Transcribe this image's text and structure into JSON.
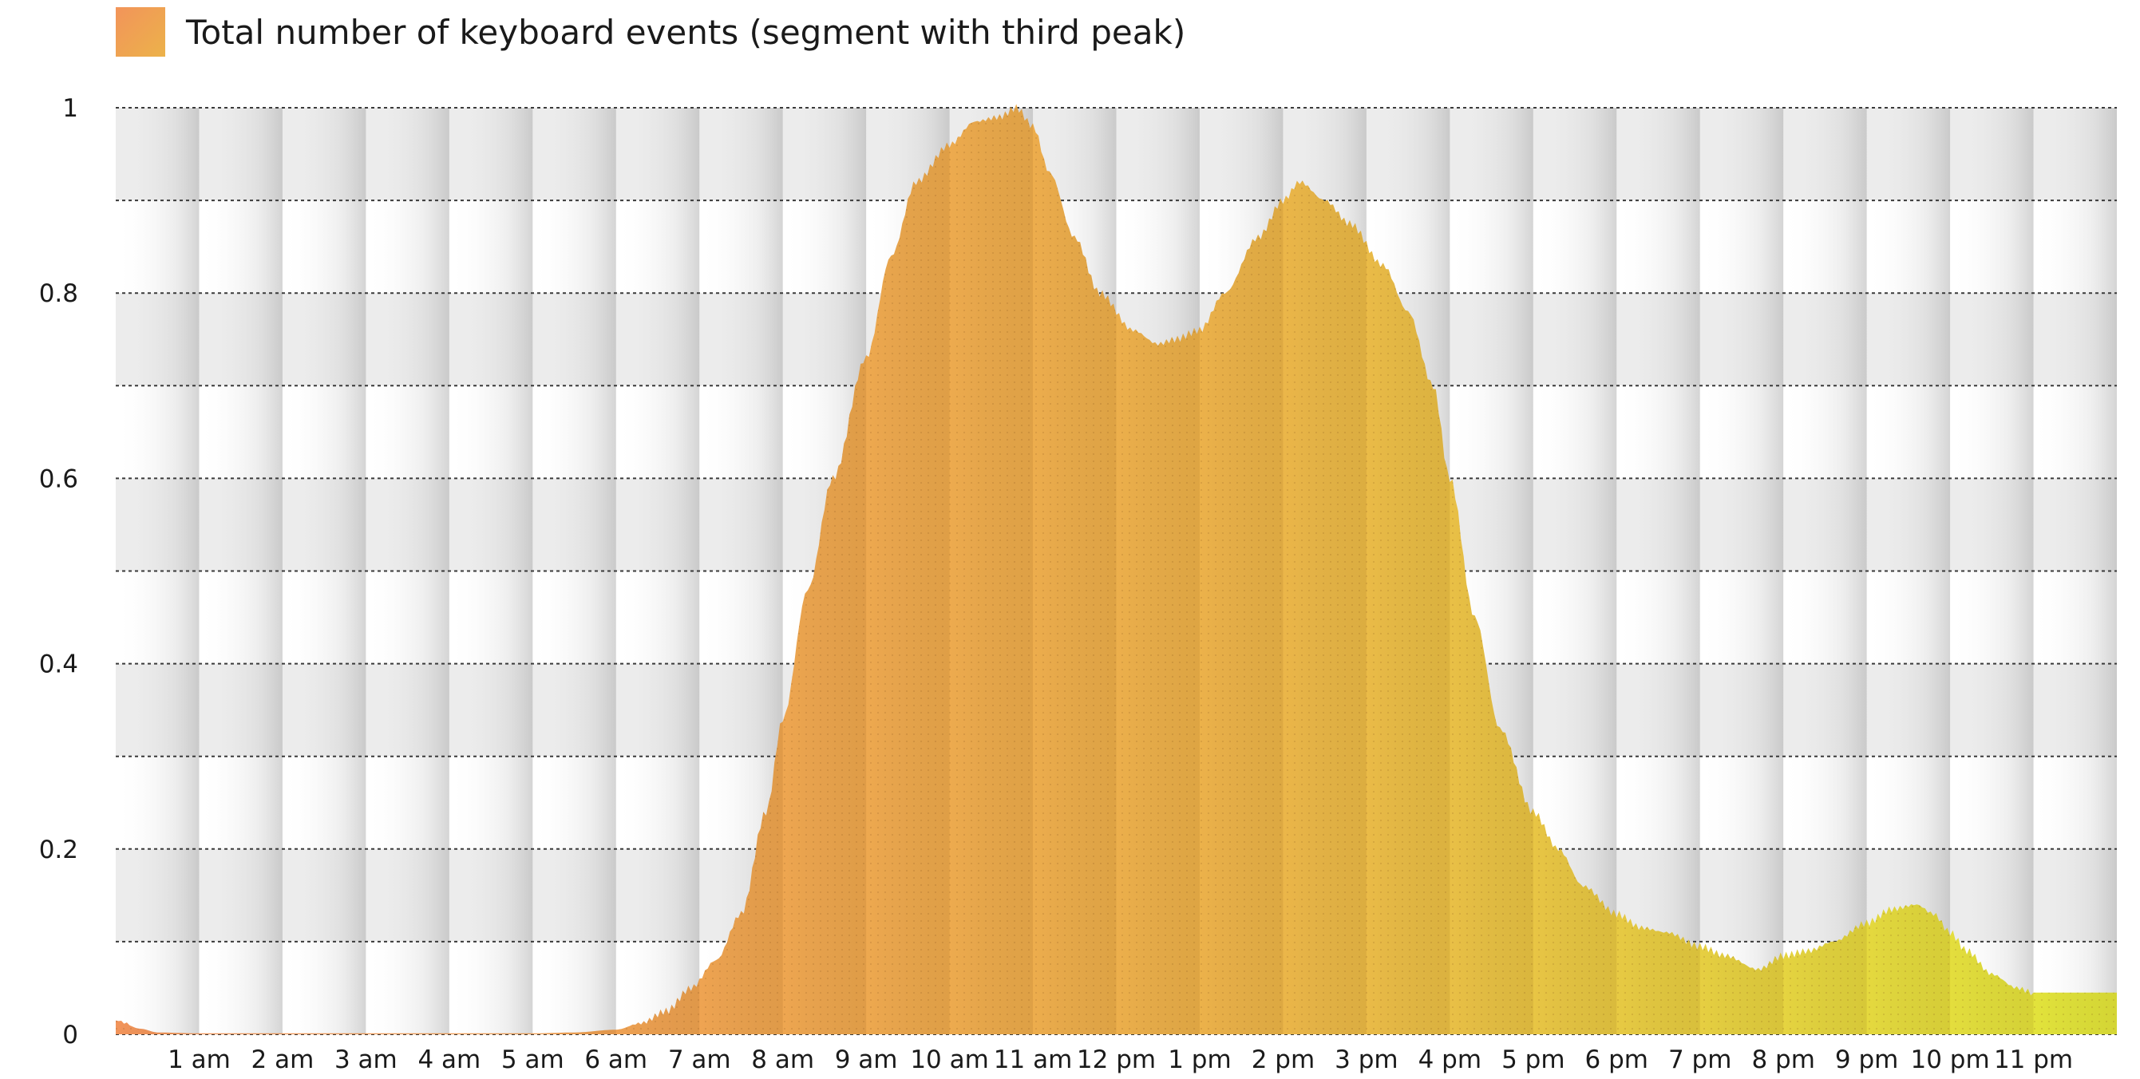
{
  "chart_data": {
    "type": "area",
    "title": "",
    "legend": {
      "label": "Total number of keyboard events (segment with third peak)",
      "position": "top-left"
    },
    "xlabel": "",
    "ylabel": "",
    "xlim": [
      0,
      24
    ],
    "ylim": [
      0,
      1
    ],
    "grid": true,
    "x_tick_labels": [
      "1 am",
      "2 am",
      "3 am",
      "4 am",
      "5 am",
      "6 am",
      "7 am",
      "8 am",
      "9 am",
      "10 am",
      "11 am",
      "12 pm",
      "1 pm",
      "2 pm",
      "3 pm",
      "4 pm",
      "5 pm",
      "6 pm",
      "7 pm",
      "8 pm",
      "9 pm",
      "10 pm",
      "11 pm"
    ],
    "y_tick_labels": [
      "0",
      "0.2",
      "0.4",
      "0.6",
      "0.8",
      "1"
    ],
    "y_ticks": [
      0,
      0.2,
      0.4,
      0.6,
      0.8,
      1.0
    ],
    "series": [
      {
        "name": "Total number of keyboard events (segment with third peak)",
        "x": [
          0,
          0.3,
          0.5,
          1,
          2,
          3,
          4,
          5,
          5.5,
          6,
          6.3,
          6.6,
          6.9,
          7.2,
          7.5,
          7.8,
          8.0,
          8.3,
          8.6,
          9.0,
          9.3,
          9.6,
          10.0,
          10.3,
          10.6,
          10.8,
          11.0,
          11.2,
          11.5,
          11.8,
          12.2,
          12.5,
          12.7,
          13.0,
          13.3,
          13.7,
          14.0,
          14.2,
          14.5,
          14.8,
          15.2,
          15.5,
          15.8,
          16.0,
          16.3,
          16.6,
          17.0,
          17.3,
          17.6,
          18.0,
          18.3,
          18.6,
          19.0,
          19.3,
          19.7,
          20.0,
          20.3,
          20.6,
          21.0,
          21.3,
          21.6,
          21.8,
          22.0,
          22.2,
          22.5,
          22.8,
          23.0
        ],
        "values": [
          0.015,
          0.006,
          0.002,
          0.001,
          0.001,
          0.001,
          0.001,
          0.001,
          0.002,
          0.005,
          0.012,
          0.025,
          0.05,
          0.08,
          0.13,
          0.24,
          0.34,
          0.48,
          0.6,
          0.73,
          0.84,
          0.92,
          0.96,
          0.985,
          0.99,
          1.0,
          0.98,
          0.93,
          0.86,
          0.8,
          0.76,
          0.745,
          0.75,
          0.76,
          0.8,
          0.86,
          0.9,
          0.92,
          0.9,
          0.875,
          0.83,
          0.78,
          0.7,
          0.6,
          0.45,
          0.33,
          0.24,
          0.2,
          0.16,
          0.13,
          0.115,
          0.11,
          0.095,
          0.085,
          0.07,
          0.085,
          0.09,
          0.1,
          0.12,
          0.135,
          0.14,
          0.13,
          0.11,
          0.09,
          0.065,
          0.05,
          0.045
        ]
      }
    ],
    "colors": {
      "gradient_start": "#f2945a",
      "gradient_mid": "#ecb24a",
      "gradient_end": "#e2e83a",
      "band_light": "#ffffff",
      "band_dark": "#dcdcdc",
      "grid_line": "#3a3a3a"
    }
  }
}
